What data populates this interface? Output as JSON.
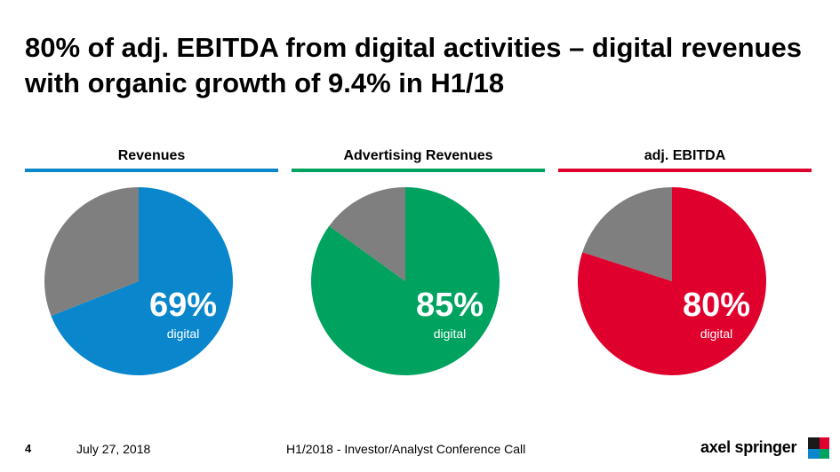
{
  "slide": {
    "title": "80% of adj. EBITDA from digital activities – digital revenues with organic growth of 9.4% in H1/18"
  },
  "footer": {
    "page_number": "4",
    "date": "July 27, 2018",
    "event": "H1/2018 - Investor/Analyst Conference Call",
    "brand": "axel springer"
  },
  "colors": {
    "revenues": "#0a87cc",
    "advertising": "#00a260",
    "ebitda": "#e0002d",
    "other": "#7f7f7f",
    "logo": [
      "#1a1a1a",
      "#e0002d",
      "#0a87cc",
      "#00a260"
    ]
  },
  "chart_data": [
    {
      "type": "pie",
      "title": "Revenues",
      "series": [
        {
          "name": "digital",
          "value": 69
        },
        {
          "name": "",
          "value": 31
        }
      ],
      "center_label": "69%",
      "center_sublabel": "digital"
    },
    {
      "type": "pie",
      "title": "Advertising Revenues",
      "series": [
        {
          "name": "digital",
          "value": 85
        },
        {
          "name": "",
          "value": 15
        }
      ],
      "center_label": "85%",
      "center_sublabel": "digital"
    },
    {
      "type": "pie",
      "title": "adj. EBITDA",
      "series": [
        {
          "name": "digital",
          "value": 80
        },
        {
          "name": "",
          "value": 20
        }
      ],
      "center_label": "80%",
      "center_sublabel": "digital"
    }
  ]
}
